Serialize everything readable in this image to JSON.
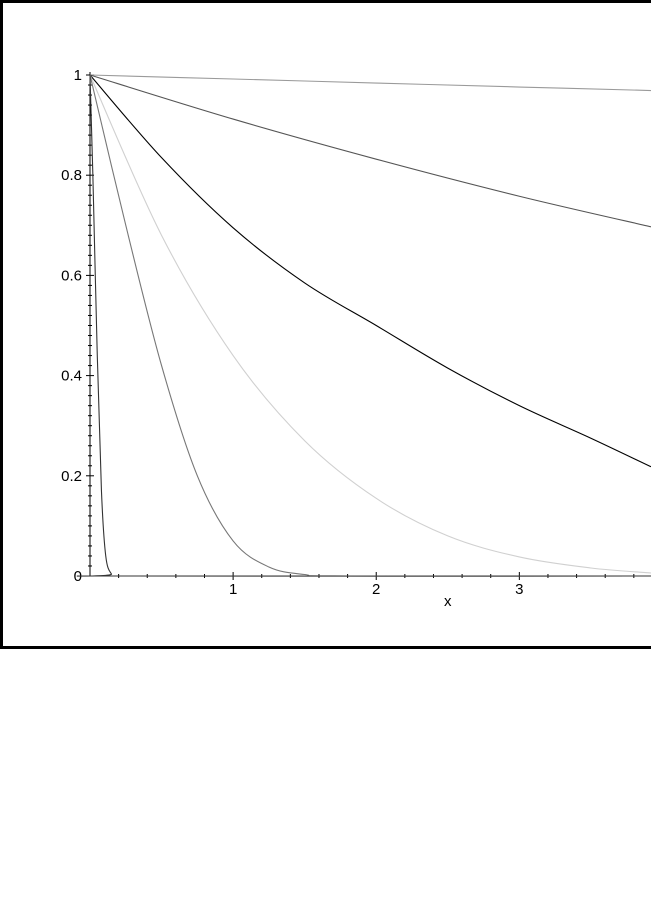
{
  "chart_data": {
    "type": "line",
    "xlabel": "x",
    "ylabel": "",
    "xlim": [
      0,
      3.92
    ],
    "ylim": [
      0,
      1
    ],
    "xticks": [
      1,
      2,
      3
    ],
    "yticks": [
      0,
      0.2,
      0.4,
      0.6,
      0.8,
      1
    ],
    "xtick_labels": [
      "1",
      "2",
      "3"
    ],
    "ytick_labels": [
      "0",
      "0.2",
      "0.4",
      "0.6",
      "0.8",
      "1"
    ],
    "grid": false,
    "series": [
      {
        "color": "#9a9a9a",
        "points": [
          [
            0,
            1
          ],
          [
            1,
            0.992
          ],
          [
            2,
            0.984
          ],
          [
            3,
            0.976
          ],
          [
            3.92,
            0.969
          ]
        ]
      },
      {
        "color": "#555555",
        "points": [
          [
            0,
            1
          ],
          [
            1,
            0.912
          ],
          [
            2,
            0.832
          ],
          [
            3,
            0.758
          ],
          [
            3.92,
            0.697
          ]
        ]
      },
      {
        "color": "#000000",
        "points": [
          [
            0,
            1
          ],
          [
            0.5,
            0.835
          ],
          [
            1,
            0.695
          ],
          [
            1.5,
            0.585
          ],
          [
            2,
            0.5
          ],
          [
            2.5,
            0.415
          ],
          [
            3,
            0.34
          ],
          [
            3.5,
            0.275
          ],
          [
            3.92,
            0.218
          ]
        ]
      },
      {
        "color": "#d0d0d0",
        "points": [
          [
            0,
            1
          ],
          [
            0.5,
            0.68
          ],
          [
            1,
            0.44
          ],
          [
            1.5,
            0.27
          ],
          [
            2,
            0.155
          ],
          [
            2.5,
            0.08
          ],
          [
            3,
            0.038
          ],
          [
            3.5,
            0.016
          ],
          [
            3.92,
            0.006
          ]
        ]
      },
      {
        "color": "#777777",
        "points": [
          [
            0,
            1
          ],
          [
            0.25,
            0.7
          ],
          [
            0.5,
            0.42
          ],
          [
            0.75,
            0.2
          ],
          [
            1,
            0.07
          ],
          [
            1.25,
            0.018
          ],
          [
            1.5,
            0.003
          ],
          [
            1.8,
            0.0
          ],
          [
            3.92,
            0.0
          ]
        ]
      },
      {
        "color": "#333333",
        "points": [
          [
            0,
            1
          ],
          [
            0.02,
            0.8
          ],
          [
            0.05,
            0.45
          ],
          [
            0.08,
            0.17
          ],
          [
            0.11,
            0.04
          ],
          [
            0.15,
            0.004
          ],
          [
            0.2,
            0.0
          ],
          [
            3.92,
            0.0
          ]
        ]
      }
    ]
  }
}
